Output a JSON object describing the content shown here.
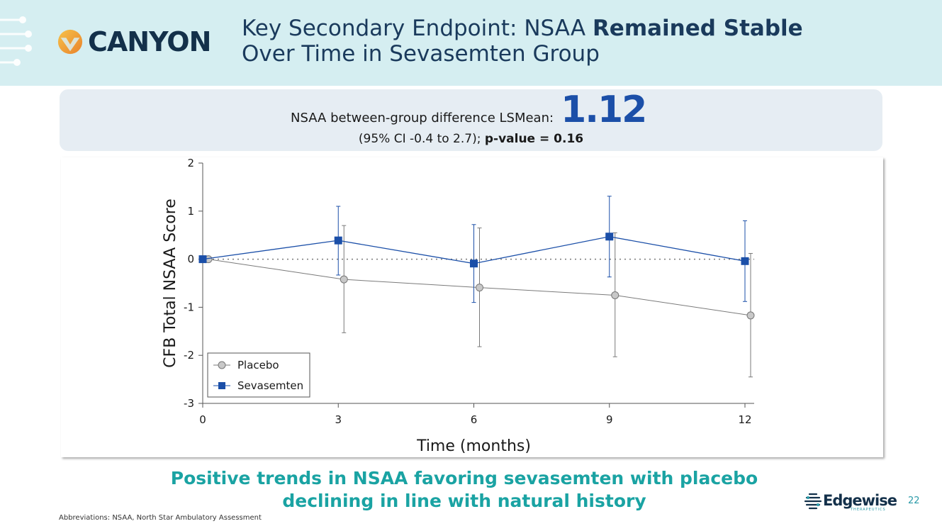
{
  "header": {
    "brand": "CANYON",
    "title_plain": "Key Secondary Endpoint: NSAA ",
    "title_bold": "Remained Stable",
    "title_line2": "Over Time in Sevasemten Group"
  },
  "stat": {
    "label": "NSAA between-group difference LSMean:",
    "value": "1.12",
    "ci": "(95% CI  -0.4 to 2.7); ",
    "pvalue": "p-value = 0.16"
  },
  "chart_data": {
    "type": "line",
    "title": "",
    "xlabel": "Time (months)",
    "ylabel": "CFB Total NSAA Score",
    "x": [
      0,
      3,
      6,
      9,
      12
    ],
    "xticks": [
      "0",
      "3",
      "6",
      "9",
      "12"
    ],
    "yticks": [
      "2",
      "1",
      "0",
      "-1",
      "-2",
      "-3"
    ],
    "ylim": [
      -3,
      2
    ],
    "xlim": [
      0,
      12
    ],
    "reference_line": 0,
    "legend_position": "bottom-left",
    "series": [
      {
        "name": "Placebo",
        "marker": "circle",
        "color": "#7a7a7a",
        "fill": "#c8c8c8",
        "values": [
          0,
          -0.42,
          -0.59,
          -0.75,
          -1.17
        ],
        "ci_low": [
          0,
          -1.53,
          -1.82,
          -2.03,
          -2.45
        ],
        "ci_high": [
          0,
          0.7,
          0.65,
          0.55,
          0.12
        ]
      },
      {
        "name": "Sevasemten",
        "marker": "square",
        "color": "#1b4fa8",
        "fill": "#1b4fa8",
        "values": [
          0,
          0.39,
          -0.09,
          0.47,
          -0.04
        ],
        "ci_low": [
          0,
          -0.33,
          -0.9,
          -0.37,
          -0.88
        ],
        "ci_high": [
          0,
          1.1,
          0.72,
          1.31,
          0.8
        ]
      }
    ]
  },
  "takeaway": {
    "line1": "Positive trends in NSAA favoring sevasemten with placebo",
    "line2": "declining in line with natural history"
  },
  "footer": {
    "abbreviations": "Abbreviations: NSAA, North Star Ambulatory Assessment",
    "company": "Edgewise",
    "company_sub": "THERAPEUTICS",
    "page_number": "22"
  },
  "colors": {
    "accent_teal": "#1aa3a3",
    "brand_navy": "#13304a",
    "sevasemten_blue": "#1b4fa8",
    "header_bg": "#d5eef1"
  }
}
